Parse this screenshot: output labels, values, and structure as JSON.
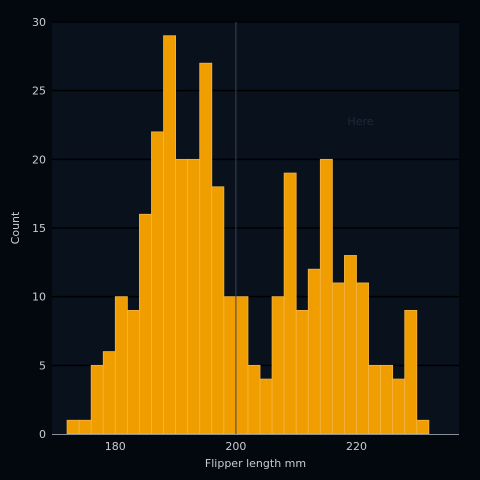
{
  "chart_data": {
    "type": "bar",
    "subtype": "histogram",
    "title": "",
    "xlabel": "Flipper length mm",
    "ylabel": "Count",
    "xlim": [
      169.5,
      237
    ],
    "ylim": [
      0,
      30
    ],
    "x_ticks": [
      180,
      200,
      220
    ],
    "y_ticks": [
      0,
      5,
      10,
      15,
      20,
      25,
      30
    ],
    "bin_start": 172,
    "bin_width": 2,
    "values": [
      1,
      1,
      5,
      6,
      10,
      9,
      16,
      22,
      29,
      20,
      20,
      27,
      18,
      10,
      10,
      5,
      4,
      10,
      19,
      9,
      12,
      20,
      11,
      13,
      11,
      5,
      5,
      4,
      9,
      1
    ],
    "reference_line_x": 200,
    "annotation": {
      "text": "Here",
      "x": 218.5,
      "y": 22.5
    },
    "grid": "horizontal",
    "colors": {
      "background": "#03070e",
      "plot_background": "#09111d",
      "bar_fill": "#f09d00",
      "bar_edge": "#f4b545",
      "grid": "#000000",
      "reference_line": "#3b4450",
      "text": "#c8ccd2",
      "annotation": "#1d2a3a"
    }
  }
}
